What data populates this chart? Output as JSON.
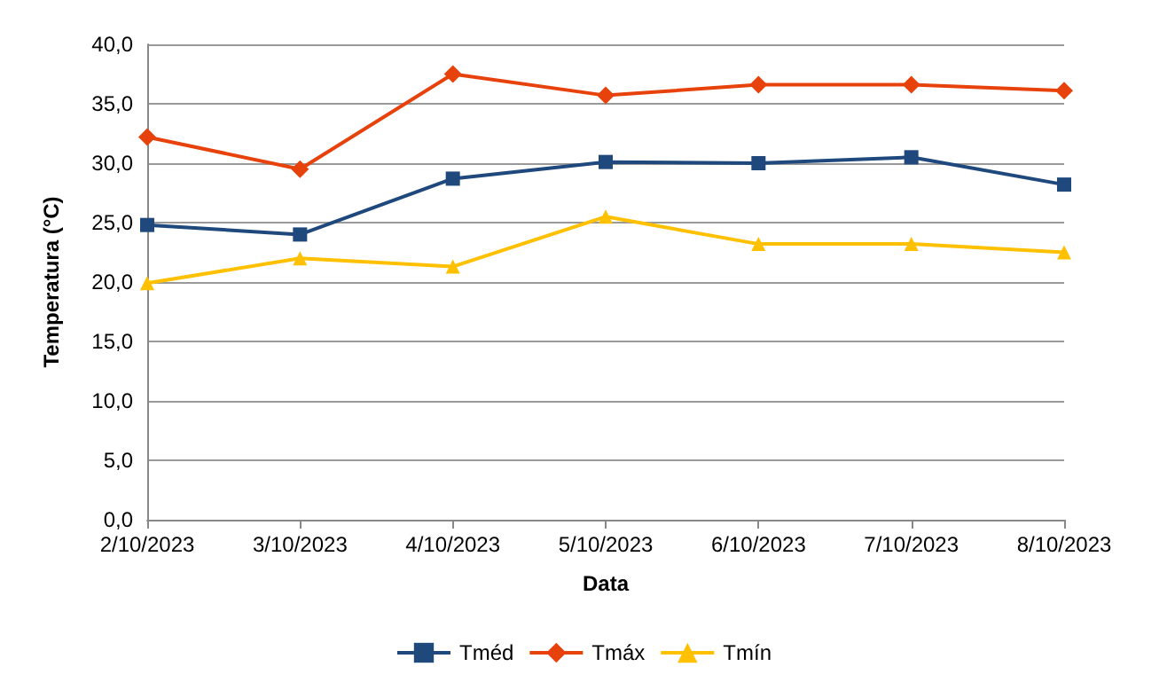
{
  "chart_data": {
    "type": "line",
    "xlabel": "Data",
    "ylabel": "Temperatura (°C)",
    "categories": [
      "2/10/2023",
      "3/10/2023",
      "4/10/2023",
      "5/10/2023",
      "6/10/2023",
      "7/10/2023",
      "8/10/2023"
    ],
    "series": [
      {
        "name": "Tméd",
        "color": "#1f497d",
        "marker": "square",
        "values": [
          24.8,
          24.0,
          28.7,
          30.1,
          30.0,
          30.5,
          28.2
        ]
      },
      {
        "name": "Tmáx",
        "color": "#e8420c",
        "marker": "diamond",
        "values": [
          32.2,
          29.5,
          37.5,
          35.7,
          36.6,
          36.6,
          36.1
        ]
      },
      {
        "name": "Tmín",
        "color": "#ffc000",
        "marker": "triangle",
        "values": [
          19.9,
          22.0,
          21.3,
          25.5,
          23.2,
          23.2,
          22.5
        ]
      }
    ],
    "ylim": [
      0,
      40
    ],
    "yticks": [
      {
        "value": 0,
        "label": "0,0"
      },
      {
        "value": 5,
        "label": "5,0"
      },
      {
        "value": 10,
        "label": "10,0"
      },
      {
        "value": 15,
        "label": "15,0"
      },
      {
        "value": 20,
        "label": "20,0"
      },
      {
        "value": 25,
        "label": "25,0"
      },
      {
        "value": 30,
        "label": "30,0"
      },
      {
        "value": 35,
        "label": "35,0"
      },
      {
        "value": 40,
        "label": "40,0"
      }
    ],
    "grid": "y",
    "legend": "bottom",
    "line_style": "solid"
  }
}
